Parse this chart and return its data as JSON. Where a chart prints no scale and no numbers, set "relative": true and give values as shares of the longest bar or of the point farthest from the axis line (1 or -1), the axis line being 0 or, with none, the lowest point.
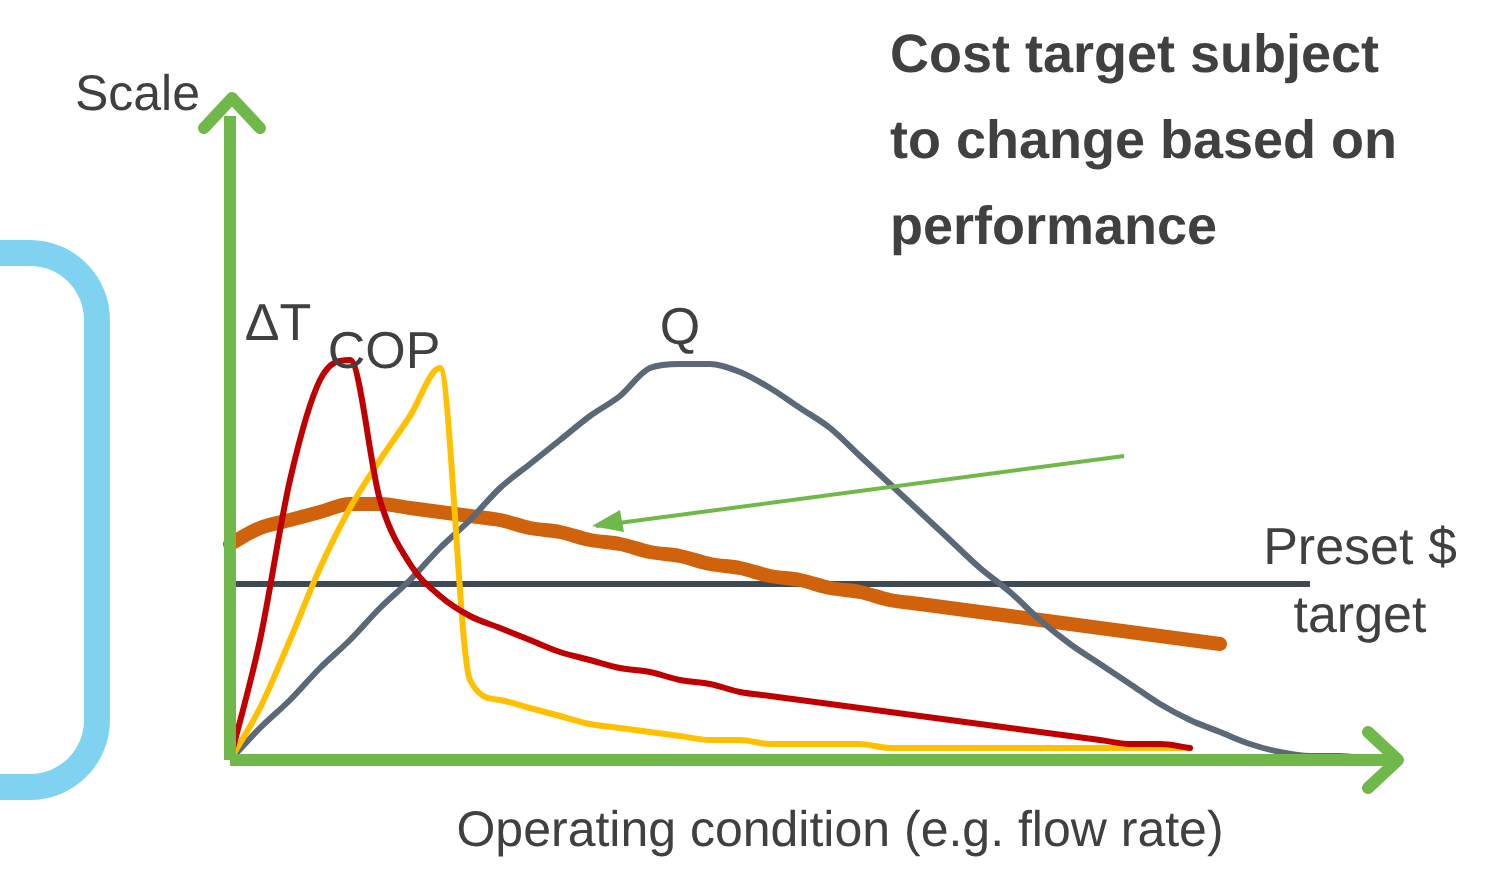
{
  "chart_data": {
    "type": "line",
    "relative": true,
    "ylabel": "Scale",
    "xlabel": "Operating condition (e.g. flow rate)",
    "legend": false,
    "marker": "none",
    "annotations": [
      "Cost target subject to change based on performance"
    ],
    "categories": [
      null,
      null,
      null,
      null,
      null,
      null,
      null,
      null,
      null,
      null,
      null,
      null,
      null,
      null,
      null,
      null,
      null,
      null,
      null,
      null,
      null,
      null,
      null,
      null,
      null,
      null,
      null,
      null,
      null,
      null,
      null,
      null,
      null,
      null,
      null,
      null,
      null,
      null,
      null
    ],
    "ref_lines": [
      {
        "axis": "y",
        "value": 0.44,
        "label": "Preset $ target",
        "color": "#404a54"
      }
    ],
    "series": [
      {
        "name": "ΔT",
        "color": "#c00000",
        "values": [
          0,
          0.3,
          0.7,
          0.95,
          1,
          0.65,
          0.49,
          0.41,
          0.36,
          0.33,
          0.3,
          0.27,
          0.25,
          0.23,
          0.22,
          0.2,
          0.19,
          0.17,
          0.16,
          0.15,
          0.14,
          0.13,
          0.12,
          0.11,
          0.1,
          0.09,
          0.08,
          0.07,
          0.06,
          0.05,
          0.04,
          0.04,
          0.03,
          null,
          null,
          null,
          null,
          null,
          null
        ]
      },
      {
        "name": "COP",
        "color": "#ffc000",
        "values": [
          0,
          0.13,
          0.3,
          0.48,
          0.63,
          0.75,
          0.86,
          0.98,
          0.2,
          0.15,
          0.13,
          0.11,
          0.09,
          0.08,
          0.07,
          0.06,
          0.05,
          0.05,
          0.04,
          0.04,
          0.04,
          0.04,
          0.03,
          0.03,
          0.03,
          0.03,
          0.03,
          0.03,
          0.03,
          0.03,
          0.03,
          0.03,
          0.03,
          null,
          null,
          null,
          null,
          null,
          null
        ]
      },
      {
        "name": "Q",
        "color": "#5a6878",
        "values": [
          0,
          0.08,
          0.15,
          0.23,
          0.3,
          0.38,
          0.45,
          0.53,
          0.6,
          0.68,
          0.74,
          0.8,
          0.86,
          0.91,
          0.98,
          0.99,
          0.99,
          0.97,
          0.93,
          0.88,
          0.83,
          0.76,
          0.69,
          0.62,
          0.55,
          0.48,
          0.42,
          0.35,
          0.29,
          0.24,
          0.19,
          0.14,
          0.1,
          0.07,
          0.04,
          0.02,
          0.01,
          0.01,
          0
        ]
      },
      {
        "color": "#d0620b",
        "values": [
          0.54,
          0.58,
          0.6,
          0.62,
          0.64,
          0.64,
          0.63,
          0.62,
          0.61,
          0.6,
          0.58,
          0.57,
          0.55,
          0.54,
          0.52,
          0.51,
          0.49,
          0.48,
          0.46,
          0.45,
          0.43,
          0.42,
          0.4,
          0.39,
          0.38,
          0.37,
          0.36,
          0.35,
          0.34,
          0.33,
          0.32,
          0.31,
          0.3,
          0.29,
          null,
          null,
          null,
          null,
          null
        ]
      }
    ]
  }
}
